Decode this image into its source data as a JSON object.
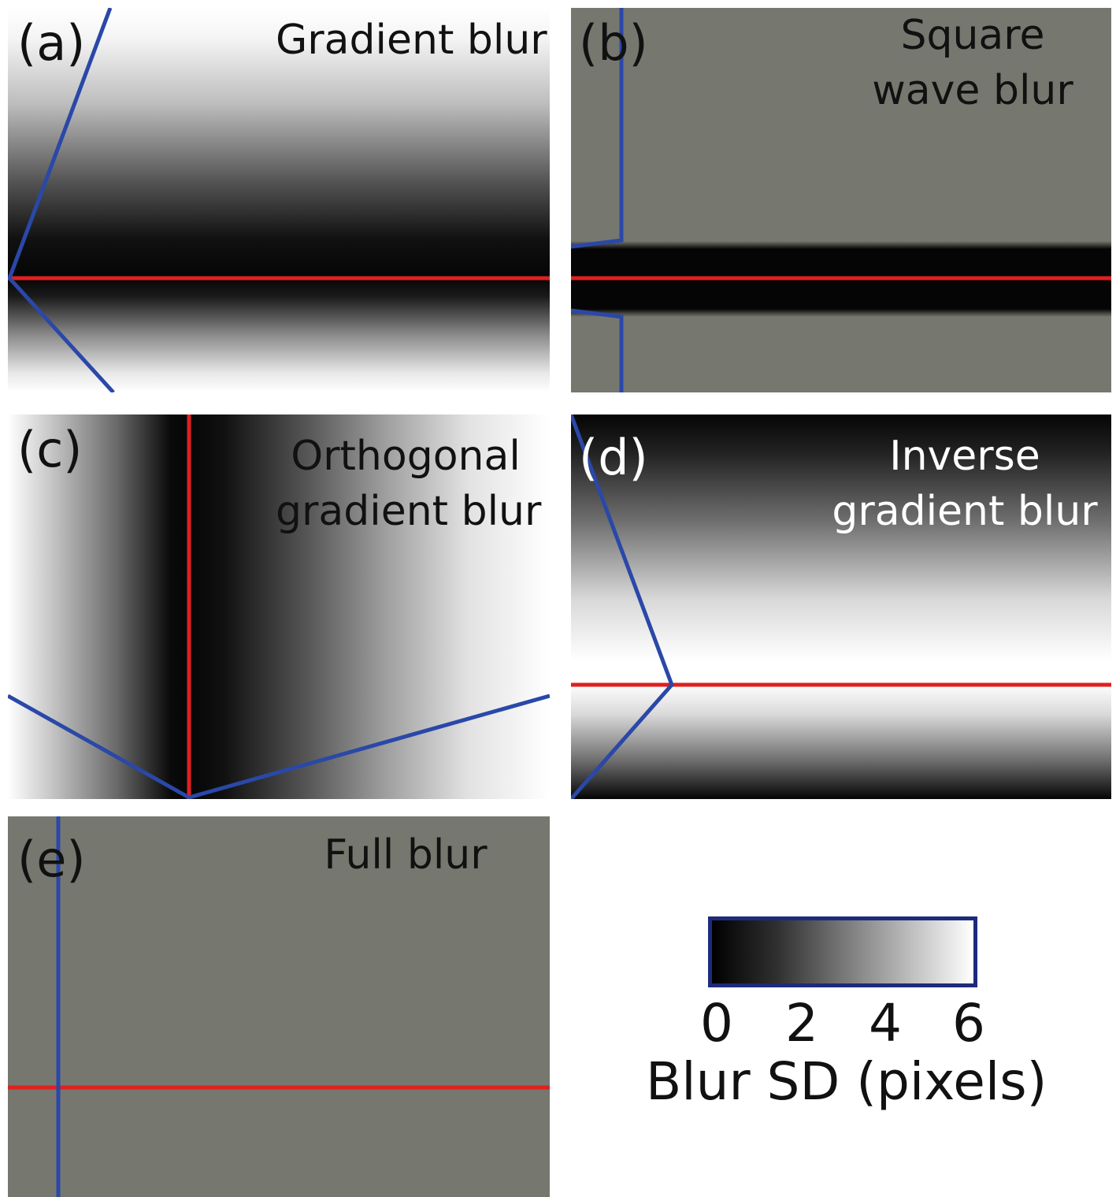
{
  "colors": {
    "guide_blue": "#2a48a8",
    "marker_red": "#e02020",
    "mid_gray": "#76776f",
    "colorbar_border": "#1d2b7a"
  },
  "panels": {
    "a": {
      "label": "(a)",
      "title_lines": [
        "Gradient blur"
      ]
    },
    "b": {
      "label": "(b)",
      "title_lines": [
        "Square",
        "wave blur"
      ]
    },
    "c": {
      "label": "(c)",
      "title_lines": [
        "Orthogonal",
        "gradient blur"
      ]
    },
    "d": {
      "label": "(d)",
      "title_lines": [
        "Inverse",
        "gradient blur"
      ]
    },
    "e": {
      "label": "(e)",
      "title_lines": [
        "Full blur"
      ]
    }
  },
  "colorbar": {
    "ticks": [
      "0",
      "2",
      "4",
      "6"
    ],
    "label": "Blur SD (pixels)",
    "range": [
      0,
      6
    ],
    "colors": [
      "black",
      "white"
    ]
  }
}
